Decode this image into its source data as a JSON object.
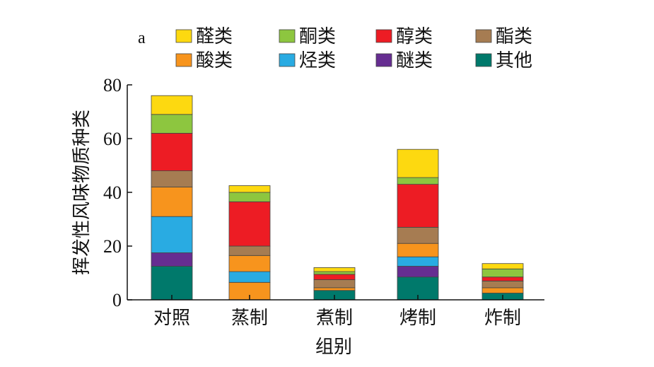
{
  "chart_data": {
    "type": "bar",
    "stacked": true,
    "panel_label": "a",
    "title": "",
    "xlabel": "组别",
    "ylabel": "挥发性风味物质种类",
    "ylim": [
      0,
      80
    ],
    "yticks": [
      0,
      20,
      40,
      60,
      80
    ],
    "legend_position": "top",
    "categories": [
      "对照",
      "蒸制",
      "煮制",
      "烤制",
      "炸制"
    ],
    "series": [
      {
        "name": "其他",
        "color": "#00796b",
        "values": [
          12.5,
          0,
          3.5,
          8.5,
          2.5
        ]
      },
      {
        "name": "酸类",
        "color": "#f7941d",
        "values": [
          0,
          6.5,
          1.0,
          0,
          2.0
        ]
      },
      {
        "name": "醚类",
        "color": "#662d91",
        "values": [
          5.0,
          0,
          0,
          4.0,
          0
        ]
      },
      {
        "name": "烃类",
        "color": "#29abe2",
        "values": [
          13.5,
          4.0,
          0,
          3.5,
          0
        ]
      },
      {
        "name": "酸类",
        "color": "#f7941d",
        "values": [
          11.0,
          6.0,
          0,
          5.0,
          0
        ]
      },
      {
        "name": "酯类",
        "color": "#a67c52",
        "values": [
          6.0,
          3.5,
          3.0,
          6.0,
          2.5
        ]
      },
      {
        "name": "醇类",
        "color": "#ed1c24",
        "values": [
          14.0,
          16.5,
          2.0,
          16.0,
          1.5
        ]
      },
      {
        "name": "酮类",
        "color": "#8dc63f",
        "values": [
          7.0,
          3.5,
          1.0,
          2.5,
          3.0
        ]
      },
      {
        "name": "醛类",
        "color": "#fdd910",
        "values": [
          7.0,
          2.5,
          1.5,
          10.5,
          2.0
        ]
      }
    ],
    "legend": [
      {
        "name": "醛类",
        "color": "#fdd910"
      },
      {
        "name": "酮类",
        "color": "#8dc63f"
      },
      {
        "name": "醇类",
        "color": "#ed1c24"
      },
      {
        "name": "酯类",
        "color": "#a67c52"
      },
      {
        "name": "酸类",
        "color": "#f7941d"
      },
      {
        "name": "烃类",
        "color": "#29abe2"
      },
      {
        "name": "醚类",
        "color": "#662d91"
      },
      {
        "name": "其他",
        "color": "#00796b"
      }
    ]
  }
}
